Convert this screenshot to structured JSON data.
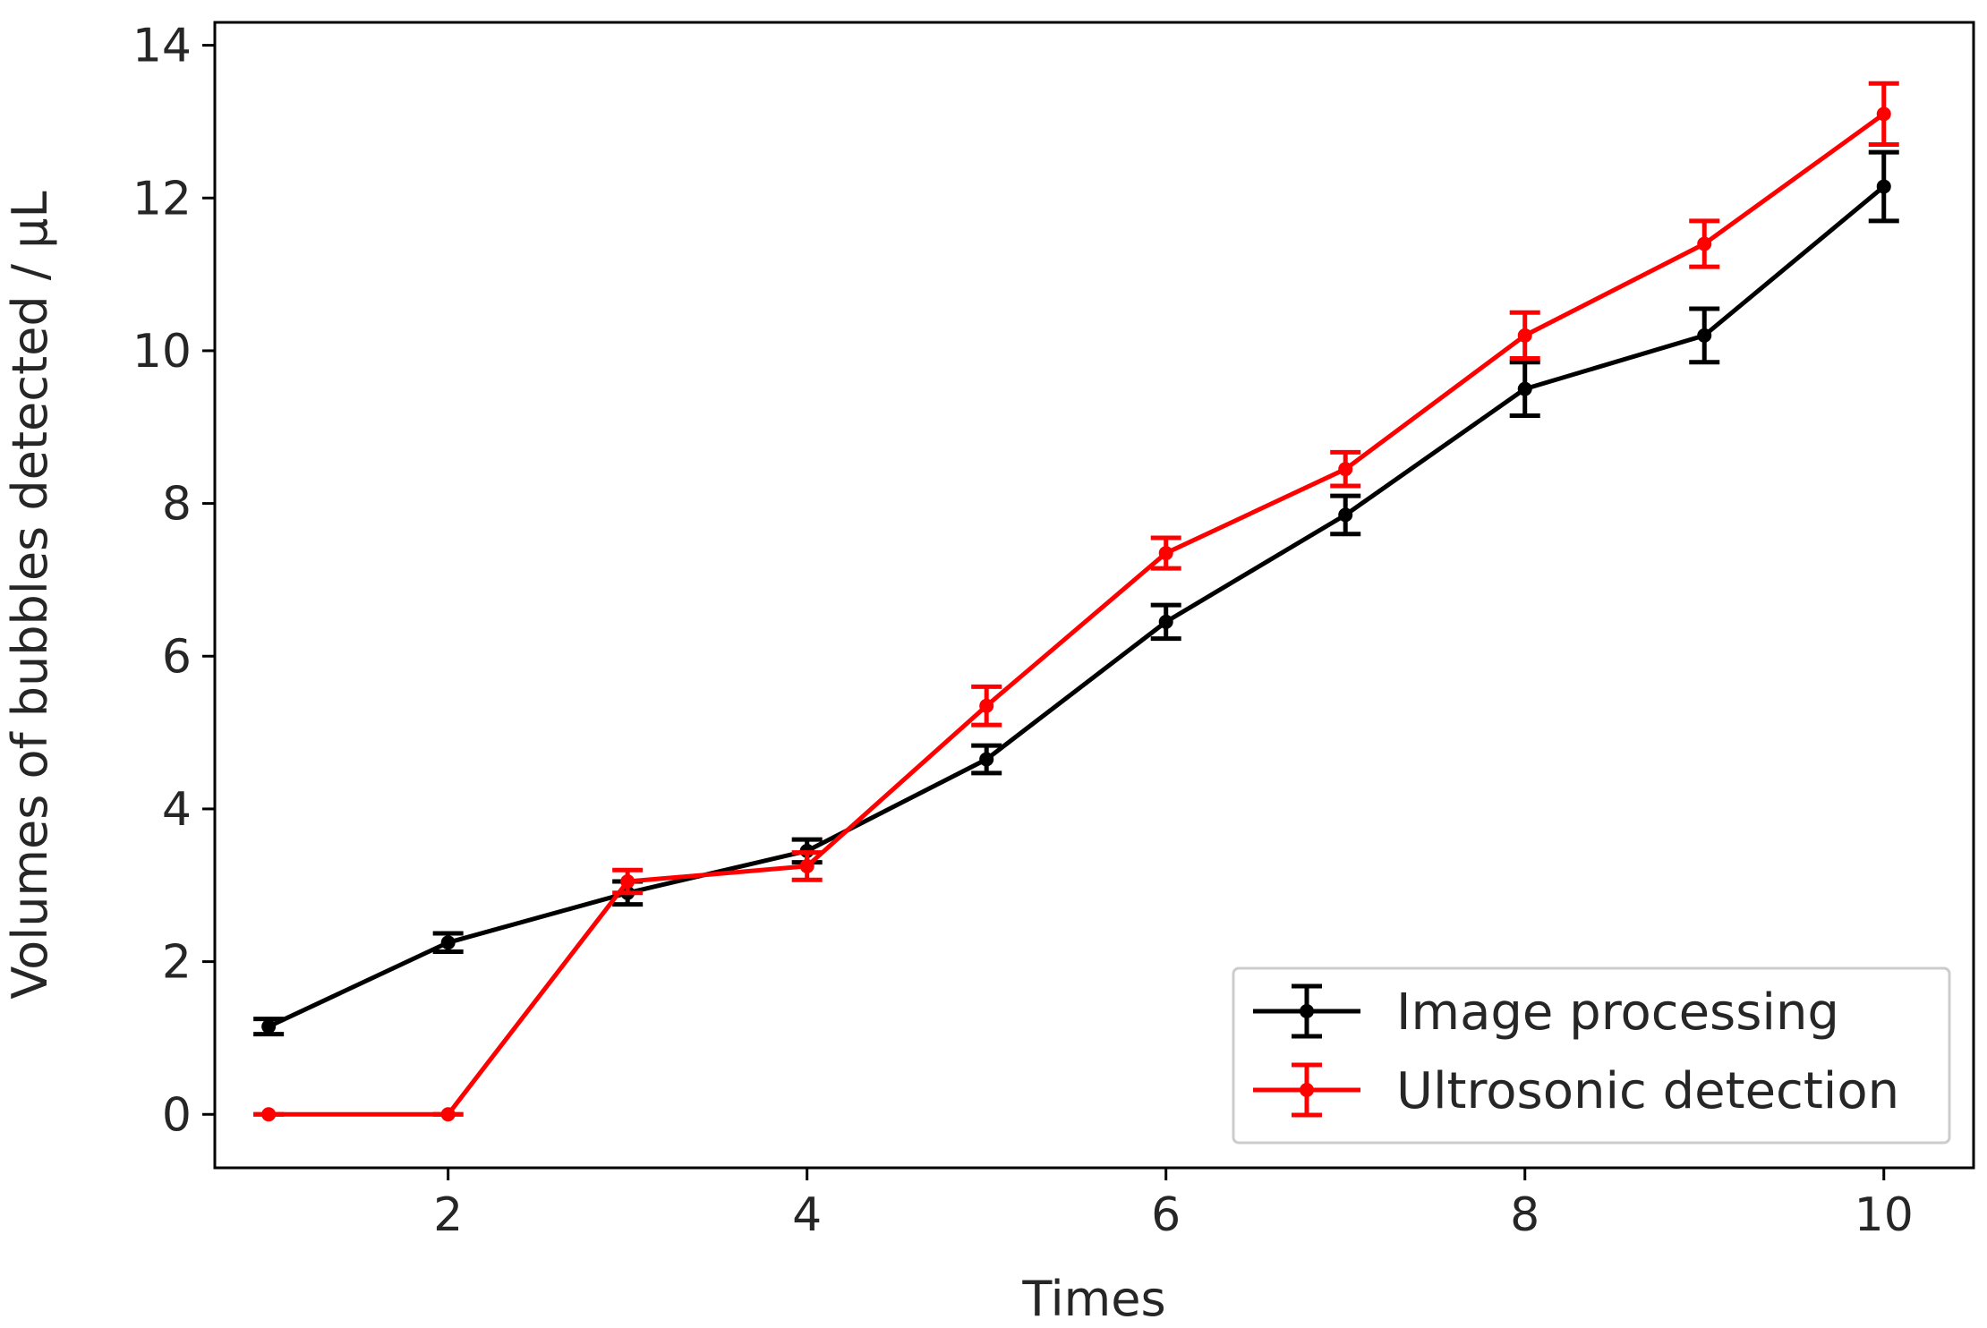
{
  "chart_data": {
    "type": "line",
    "title": "",
    "xlabel": "Times",
    "ylabel": "Volumes of bubbles detected / μL",
    "xlim": [
      0.7,
      10.5
    ],
    "ylim": [
      -0.7,
      14.3
    ],
    "xticks": [
      2,
      4,
      6,
      8,
      10
    ],
    "yticks": [
      0,
      2,
      4,
      6,
      8,
      10,
      12,
      14
    ],
    "grid": false,
    "legend_position": "lower-right",
    "x": [
      1,
      2,
      3,
      4,
      5,
      6,
      7,
      8,
      9,
      10
    ],
    "series": [
      {
        "name": "Image processing",
        "color": "#000000",
        "values": [
          1.15,
          2.25,
          2.9,
          3.45,
          4.65,
          6.45,
          7.85,
          9.5,
          10.2,
          12.15
        ],
        "errors": [
          0.1,
          0.12,
          0.15,
          0.15,
          0.18,
          0.22,
          0.25,
          0.35,
          0.35,
          0.45
        ]
      },
      {
        "name": "Ultrosonic detection",
        "color": "#ff0000",
        "values": [
          0.0,
          0.0,
          3.05,
          3.25,
          5.35,
          7.35,
          8.45,
          10.2,
          11.4,
          13.1
        ],
        "errors": [
          0.0,
          0.0,
          0.15,
          0.18,
          0.25,
          0.2,
          0.22,
          0.3,
          0.3,
          0.4
        ]
      }
    ]
  }
}
